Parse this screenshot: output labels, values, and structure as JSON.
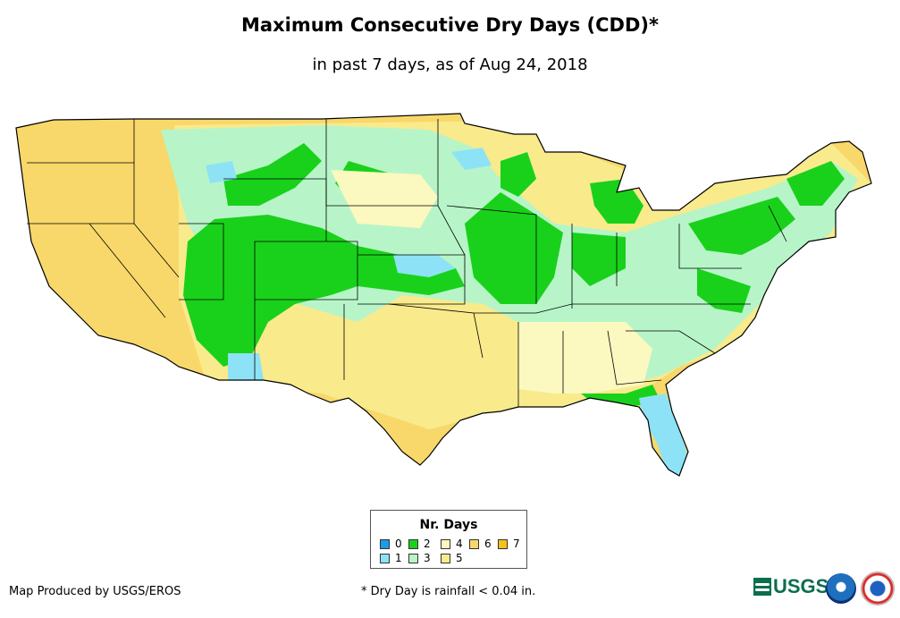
{
  "header": {
    "title": "Maximum Consecutive Dry Days (CDD)*",
    "subtitle": "in past 7 days, as of Aug 24, 2018"
  },
  "legend": {
    "title": "Nr. Days",
    "items": [
      {
        "label": "0",
        "color": "#1e9be8"
      },
      {
        "label": "1",
        "color": "#8de3f5"
      },
      {
        "label": "2",
        "color": "#19d11b"
      },
      {
        "label": "3",
        "color": "#b7f5c8"
      },
      {
        "label": "4",
        "color": "#fbf8c0"
      },
      {
        "label": "5",
        "color": "#f9ea8c"
      },
      {
        "label": "6",
        "color": "#f8d86a"
      },
      {
        "label": "7",
        "color": "#f5c21c"
      }
    ]
  },
  "footer": {
    "credit": "Map Produced by USGS/EROS",
    "footnote": "* Dry Day is rainfall < 0.04 in.",
    "usgs_logo": "USGS",
    "noaa_logo": "noaa",
    "nws_logo": "nws-seal-icon"
  },
  "map": {
    "description_colors": {
      "west": "#f8d86a",
      "rockies": "#19d11b",
      "plains": "#b7f5c8",
      "south": "#f9ea8c",
      "florida": "#8de3f5"
    }
  }
}
